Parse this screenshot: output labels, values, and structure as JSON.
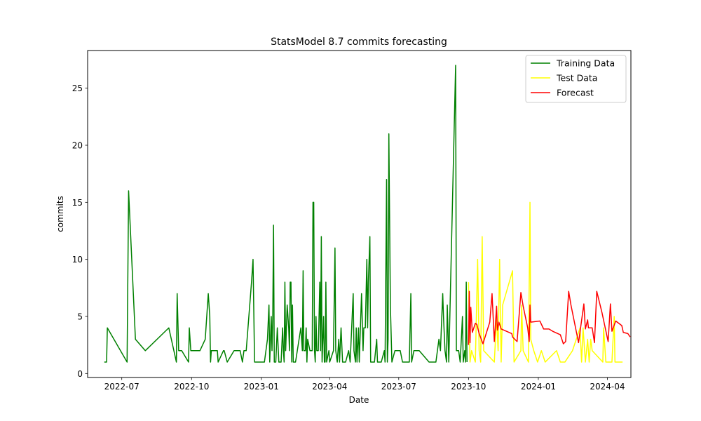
{
  "chart_data": {
    "type": "line",
    "title": "StatsModel 8.7 commits forecasting",
    "xlabel": "Date",
    "ylabel": "commits",
    "xlim": [
      "2022-05-17",
      "2024-05-02"
    ],
    "ylim": [
      -0.35,
      28.3
    ],
    "x_ticks": [
      "2022-07-01",
      "2022-10-01",
      "2023-01-01",
      "2023-04-01",
      "2023-07-01",
      "2023-10-01",
      "2024-01-01",
      "2024-04-01"
    ],
    "x_tick_labels": [
      "2022-07",
      "2022-10",
      "2023-01",
      "2023-04",
      "2023-07",
      "2023-10",
      "2024-01",
      "2024-04"
    ],
    "y_ticks": [
      0,
      5,
      10,
      15,
      20,
      25
    ],
    "grid": false,
    "legend_position": "top-right",
    "series": [
      {
        "name": "Training Data",
        "color": "#008000",
        "points": [
          [
            "2022-06-08",
            1
          ],
          [
            "2022-06-11",
            1
          ],
          [
            "2022-06-12",
            4
          ],
          [
            "2022-07-08",
            1
          ],
          [
            "2022-07-10",
            16
          ],
          [
            "2022-07-19",
            3
          ],
          [
            "2022-08-01",
            2
          ],
          [
            "2022-09-01",
            4
          ],
          [
            "2022-09-11",
            1
          ],
          [
            "2022-09-12",
            7
          ],
          [
            "2022-09-14",
            2
          ],
          [
            "2022-09-18",
            2
          ],
          [
            "2022-09-27",
            1
          ],
          [
            "2022-09-28",
            4
          ],
          [
            "2022-09-30",
            2
          ],
          [
            "2022-10-12",
            2
          ],
          [
            "2022-10-19",
            3
          ],
          [
            "2022-10-23",
            7
          ],
          [
            "2022-10-25",
            5
          ],
          [
            "2022-10-26",
            1
          ],
          [
            "2022-10-27",
            2
          ],
          [
            "2022-11-04",
            2
          ],
          [
            "2022-11-05",
            1
          ],
          [
            "2022-11-12",
            2
          ],
          [
            "2022-11-13",
            2
          ],
          [
            "2022-11-17",
            1
          ],
          [
            "2022-11-26",
            2
          ],
          [
            "2022-12-04",
            2
          ],
          [
            "2022-12-07",
            1
          ],
          [
            "2022-12-09",
            2
          ],
          [
            "2022-12-12",
            2
          ],
          [
            "2022-12-19",
            8
          ],
          [
            "2022-12-21",
            10
          ],
          [
            "2022-12-23",
            1
          ],
          [
            "2023-01-05",
            1
          ],
          [
            "2023-01-09",
            3
          ],
          [
            "2023-01-11",
            6
          ],
          [
            "2023-01-12",
            1
          ],
          [
            "2023-01-14",
            5
          ],
          [
            "2023-01-15",
            2
          ],
          [
            "2023-01-16",
            5
          ],
          [
            "2023-01-17",
            13
          ],
          [
            "2023-01-18",
            1
          ],
          [
            "2023-01-20",
            1
          ],
          [
            "2023-01-22",
            4
          ],
          [
            "2023-01-24",
            1
          ],
          [
            "2023-01-27",
            1
          ],
          [
            "2023-01-29",
            4
          ],
          [
            "2023-01-30",
            2
          ],
          [
            "2023-01-31",
            1
          ],
          [
            "2023-02-01",
            8
          ],
          [
            "2023-02-02",
            2
          ],
          [
            "2023-02-04",
            6
          ],
          [
            "2023-02-06",
            4
          ],
          [
            "2023-02-07",
            2
          ],
          [
            "2023-02-08",
            8
          ],
          [
            "2023-02-09",
            8
          ],
          [
            "2023-02-10",
            1
          ],
          [
            "2023-02-11",
            6
          ],
          [
            "2023-02-12",
            1
          ],
          [
            "2023-02-15",
            1
          ],
          [
            "2023-02-22",
            4
          ],
          [
            "2023-02-24",
            2
          ],
          [
            "2023-02-25",
            9
          ],
          [
            "2023-02-26",
            2
          ],
          [
            "2023-02-28",
            2
          ],
          [
            "2023-03-01",
            4
          ],
          [
            "2023-03-02",
            1
          ],
          [
            "2023-03-03",
            3
          ],
          [
            "2023-03-06",
            2
          ],
          [
            "2023-03-09",
            2
          ],
          [
            "2023-03-10",
            15
          ],
          [
            "2023-03-11",
            15
          ],
          [
            "2023-03-12",
            2
          ],
          [
            "2023-03-13",
            1
          ],
          [
            "2023-03-14",
            5
          ],
          [
            "2023-03-15",
            2
          ],
          [
            "2023-03-17",
            2
          ],
          [
            "2023-03-19",
            8
          ],
          [
            "2023-03-20",
            2
          ],
          [
            "2023-03-21",
            12
          ],
          [
            "2023-03-22",
            1
          ],
          [
            "2023-03-24",
            5
          ],
          [
            "2023-03-25",
            1
          ],
          [
            "2023-03-26",
            1
          ],
          [
            "2023-03-27",
            8
          ],
          [
            "2023-03-28",
            1
          ],
          [
            "2023-03-31",
            2
          ],
          [
            "2023-04-01",
            1
          ],
          [
            "2023-04-06",
            2
          ],
          [
            "2023-04-08",
            11
          ],
          [
            "2023-04-09",
            2
          ],
          [
            "2023-04-11",
            1
          ],
          [
            "2023-04-13",
            3
          ],
          [
            "2023-04-14",
            1
          ],
          [
            "2023-04-16",
            4
          ],
          [
            "2023-04-18",
            1
          ],
          [
            "2023-04-22",
            1
          ],
          [
            "2023-04-26",
            2
          ],
          [
            "2023-04-28",
            1
          ],
          [
            "2023-05-02",
            7
          ],
          [
            "2023-05-03",
            2
          ],
          [
            "2023-05-05",
            1
          ],
          [
            "2023-05-06",
            4
          ],
          [
            "2023-05-07",
            1
          ],
          [
            "2023-05-09",
            4
          ],
          [
            "2023-05-10",
            1
          ],
          [
            "2023-05-13",
            7
          ],
          [
            "2023-05-15",
            2
          ],
          [
            "2023-05-16",
            4
          ],
          [
            "2023-05-18",
            4
          ],
          [
            "2023-05-20",
            10
          ],
          [
            "2023-05-21",
            4
          ],
          [
            "2023-05-22",
            8
          ],
          [
            "2023-05-24",
            12
          ],
          [
            "2023-05-25",
            1
          ],
          [
            "2023-05-27",
            1
          ],
          [
            "2023-05-30",
            1
          ],
          [
            "2023-06-02",
            3
          ],
          [
            "2023-06-03",
            1
          ],
          [
            "2023-06-06",
            1
          ],
          [
            "2023-06-08",
            1
          ],
          [
            "2023-06-12",
            2
          ],
          [
            "2023-06-13",
            1
          ],
          [
            "2023-06-15",
            17
          ],
          [
            "2023-06-16",
            1
          ],
          [
            "2023-06-17",
            3
          ],
          [
            "2023-06-18",
            21
          ],
          [
            "2023-06-20",
            6
          ],
          [
            "2023-06-22",
            1
          ],
          [
            "2023-06-26",
            2
          ],
          [
            "2023-07-03",
            2
          ],
          [
            "2023-07-06",
            1
          ],
          [
            "2023-07-15",
            1
          ],
          [
            "2023-07-17",
            7
          ],
          [
            "2023-07-18",
            1
          ],
          [
            "2023-07-21",
            2
          ],
          [
            "2023-07-28",
            2
          ],
          [
            "2023-08-10",
            1
          ],
          [
            "2023-08-19",
            1
          ],
          [
            "2023-08-23",
            3
          ],
          [
            "2023-08-25",
            2
          ],
          [
            "2023-08-28",
            7
          ],
          [
            "2023-08-29",
            5
          ],
          [
            "2023-08-31",
            2
          ],
          [
            "2023-09-02",
            1
          ],
          [
            "2023-09-03",
            6
          ],
          [
            "2023-09-05",
            1
          ],
          [
            "2023-09-14",
            27
          ],
          [
            "2023-09-15",
            2
          ],
          [
            "2023-09-18",
            2
          ],
          [
            "2023-09-20",
            1
          ],
          [
            "2023-09-23",
            5
          ],
          [
            "2023-09-24",
            1
          ],
          [
            "2023-09-26",
            2
          ],
          [
            "2023-09-27",
            1
          ],
          [
            "2023-09-28",
            8
          ],
          [
            "2023-09-29",
            1
          ]
        ]
      },
      {
        "name": "Test Data",
        "color": "#ffff00",
        "points": [
          [
            "2023-10-01",
            8
          ],
          [
            "2023-10-02",
            4
          ],
          [
            "2023-10-03",
            1
          ],
          [
            "2023-10-05",
            2
          ],
          [
            "2023-10-10",
            1
          ],
          [
            "2023-10-13",
            10
          ],
          [
            "2023-10-15",
            2
          ],
          [
            "2023-10-17",
            1
          ],
          [
            "2023-10-19",
            12
          ],
          [
            "2023-10-21",
            2
          ],
          [
            "2023-11-04",
            1
          ],
          [
            "2023-11-07",
            5
          ],
          [
            "2023-11-09",
            2
          ],
          [
            "2023-11-11",
            10
          ],
          [
            "2023-11-13",
            1
          ],
          [
            "2023-11-15",
            6
          ],
          [
            "2023-11-28",
            9
          ],
          [
            "2023-11-30",
            1
          ],
          [
            "2023-12-09",
            2
          ],
          [
            "2023-12-10",
            6
          ],
          [
            "2023-12-12",
            2
          ],
          [
            "2023-12-19",
            1
          ],
          [
            "2023-12-21",
            15
          ],
          [
            "2023-12-22",
            3
          ],
          [
            "2023-12-26",
            2
          ],
          [
            "2023-12-31",
            1
          ],
          [
            "2024-01-05",
            2
          ],
          [
            "2024-01-10",
            1
          ],
          [
            "2024-01-25",
            2
          ],
          [
            "2024-01-30",
            1
          ],
          [
            "2024-02-05",
            1
          ],
          [
            "2024-02-15",
            2
          ],
          [
            "2024-02-25",
            4
          ],
          [
            "2024-02-27",
            1
          ],
          [
            "2024-02-29",
            4
          ],
          [
            "2024-03-01",
            3
          ],
          [
            "2024-03-03",
            1
          ],
          [
            "2024-03-06",
            3
          ],
          [
            "2024-03-08",
            1
          ],
          [
            "2024-03-10",
            3
          ],
          [
            "2024-03-12",
            2
          ],
          [
            "2024-03-26",
            1
          ],
          [
            "2024-03-27",
            4
          ],
          [
            "2024-03-30",
            1
          ],
          [
            "2024-04-07",
            1
          ],
          [
            "2024-04-10",
            5
          ],
          [
            "2024-04-11",
            1
          ],
          [
            "2024-04-21",
            1
          ]
        ]
      },
      {
        "name": "Forecast",
        "color": "#ff0000",
        "points": [
          [
            "2023-10-01",
            2.5
          ],
          [
            "2023-10-02",
            7.2
          ],
          [
            "2023-10-03",
            2.7
          ],
          [
            "2023-10-04",
            5.8
          ],
          [
            "2023-10-06",
            3.6
          ],
          [
            "2023-10-10",
            4.4
          ],
          [
            "2023-10-12",
            4.3
          ],
          [
            "2023-10-15",
            3.5
          ],
          [
            "2023-10-20",
            2.6
          ],
          [
            "2023-10-29",
            4.5
          ],
          [
            "2023-11-01",
            7.0
          ],
          [
            "2023-11-04",
            2.8
          ],
          [
            "2023-11-07",
            5.9
          ],
          [
            "2023-11-08",
            3.8
          ],
          [
            "2023-11-10",
            4.5
          ],
          [
            "2023-11-13",
            3.9
          ],
          [
            "2023-11-27",
            3.5
          ],
          [
            "2023-11-28",
            3.2
          ],
          [
            "2023-12-04",
            2.8
          ],
          [
            "2023-12-09",
            7.1
          ],
          [
            "2023-12-12",
            5.9
          ],
          [
            "2023-12-18",
            4.0
          ],
          [
            "2023-12-20",
            2.8
          ],
          [
            "2023-12-21",
            6.0
          ],
          [
            "2023-12-22",
            4.5
          ],
          [
            "2024-01-03",
            4.6
          ],
          [
            "2024-01-08",
            3.9
          ],
          [
            "2024-01-15",
            3.9
          ],
          [
            "2024-01-20",
            3.7
          ],
          [
            "2024-01-30",
            3.4
          ],
          [
            "2024-02-03",
            2.6
          ],
          [
            "2024-02-06",
            2.8
          ],
          [
            "2024-02-10",
            7.2
          ],
          [
            "2024-02-13",
            6.0
          ],
          [
            "2024-02-23",
            2.7
          ],
          [
            "2024-03-01",
            6.1
          ],
          [
            "2024-03-03",
            3.9
          ],
          [
            "2024-03-06",
            4.7
          ],
          [
            "2024-03-07",
            4.0
          ],
          [
            "2024-03-12",
            4.0
          ],
          [
            "2024-03-15",
            2.7
          ],
          [
            "2024-03-18",
            7.2
          ],
          [
            "2024-03-25",
            5.3
          ],
          [
            "2024-04-02",
            2.8
          ],
          [
            "2024-04-05",
            6.1
          ],
          [
            "2024-04-07",
            3.7
          ],
          [
            "2024-04-12",
            4.6
          ],
          [
            "2024-04-20",
            4.2
          ],
          [
            "2024-04-22",
            3.6
          ],
          [
            "2024-04-28",
            3.5
          ],
          [
            "2024-05-01",
            3.2
          ]
        ]
      }
    ]
  }
}
